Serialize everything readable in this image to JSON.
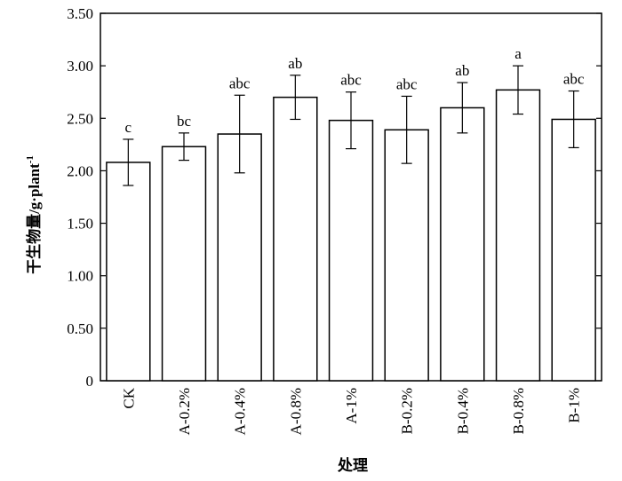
{
  "chart_data": {
    "type": "bar",
    "title": "",
    "xlabel": "处理",
    "ylabel_main": "干生物量/g·plant",
    "ylabel_sup": "-1",
    "ylim": [
      0,
      3.5
    ],
    "yticks": [
      "0",
      "0.50",
      "1.00",
      "1.50",
      "2.00",
      "2.50",
      "3.00",
      "3.50"
    ],
    "categories": [
      "CK",
      "A-0.2%",
      "A-0.4%",
      "A-0.8%",
      "A-1%",
      "B-0.2%",
      "B-0.4%",
      "B-0.8%",
      "B-1%"
    ],
    "values": [
      2.08,
      2.23,
      2.35,
      2.7,
      2.48,
      2.39,
      2.6,
      2.77,
      2.49
    ],
    "error": [
      0.22,
      0.13,
      0.37,
      0.21,
      0.27,
      0.32,
      0.24,
      0.23,
      0.27
    ],
    "significance_letters": [
      "c",
      "bc",
      "abc",
      "ab",
      "abc",
      "abc",
      "ab",
      "a",
      "abc"
    ],
    "bar_color": "#ffffff",
    "edge_color": "#000000",
    "grid": false,
    "legend": "none"
  }
}
